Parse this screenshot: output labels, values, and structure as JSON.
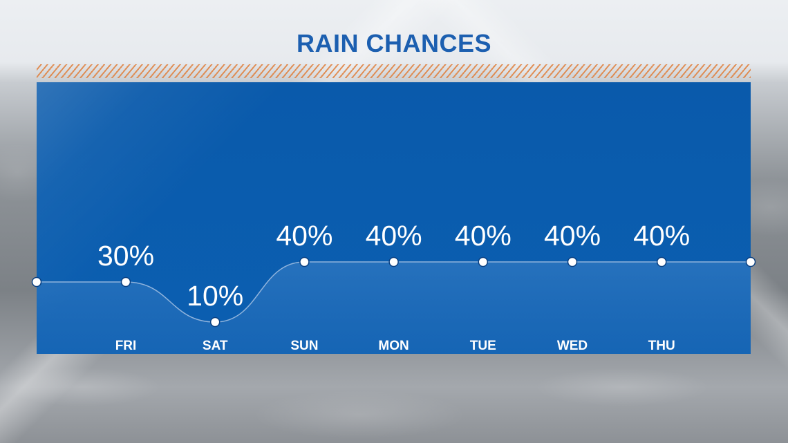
{
  "title": "RAIN CHANCES",
  "chart_data": {
    "type": "area",
    "title": "RAIN CHANCES",
    "categories": [
      "FRI",
      "SAT",
      "SUN",
      "MON",
      "TUE",
      "WED",
      "THU"
    ],
    "values": [
      30,
      10,
      40,
      40,
      40,
      40,
      40
    ],
    "value_labels": [
      "30%",
      "10%",
      "40%",
      "40%",
      "40%",
      "40%",
      "40%"
    ],
    "unit": "%",
    "ylim": [
      0,
      100
    ],
    "grid": false,
    "colors": {
      "panel": "#0b5cad",
      "title": "#1c5fb0",
      "line": "#8fb3dc",
      "marker_fill": "#ffffff",
      "marker_stroke": "#0a3f80",
      "hatch": "#e0803d"
    }
  }
}
